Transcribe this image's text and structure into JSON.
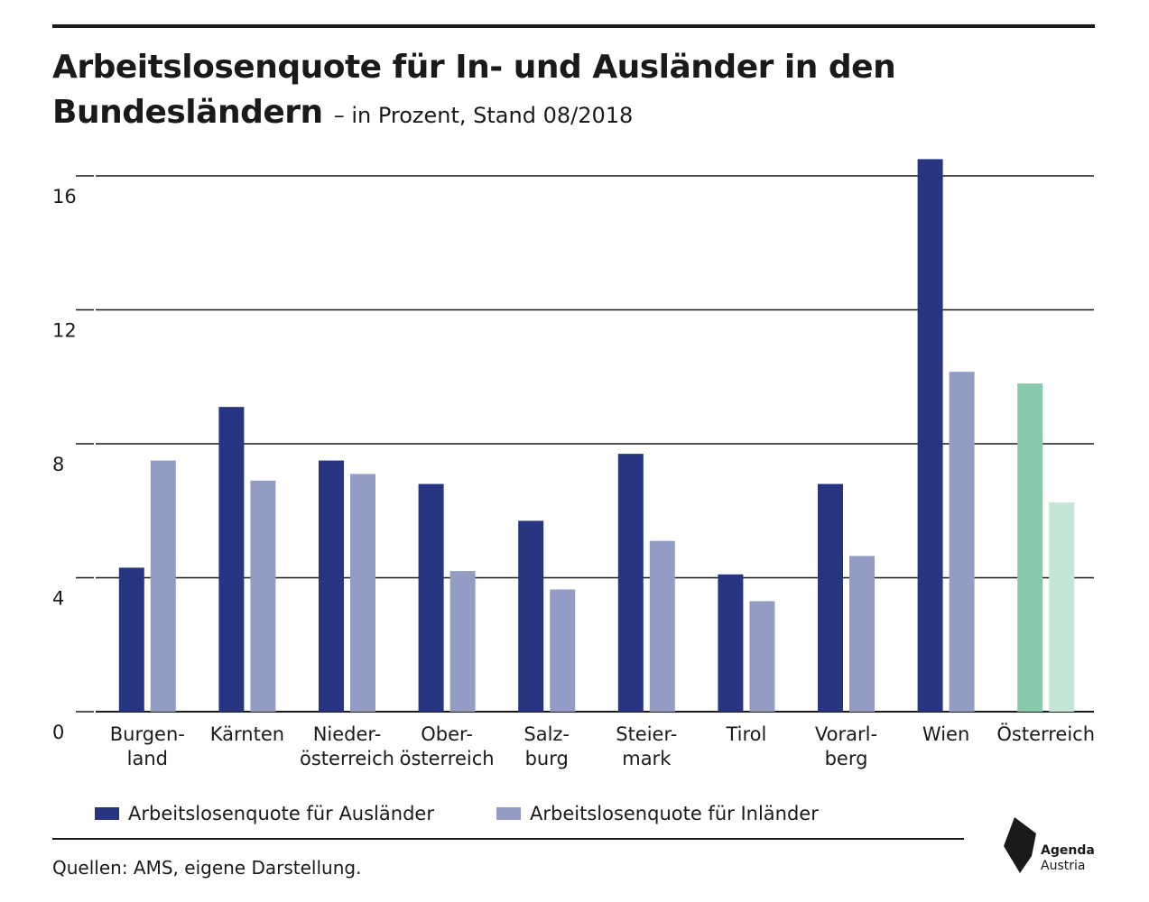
{
  "header": {
    "title_line1": "Arbeitslosenquote für In- und Ausländer in den",
    "title_line2": "Bundesländern",
    "subtitle": "– in Prozent, Stand 08/2018"
  },
  "chart_data": {
    "type": "bar",
    "categories": [
      [
        "Burgen-",
        "land"
      ],
      [
        "Kärnten"
      ],
      [
        "Nieder-",
        "österreich"
      ],
      [
        "Ober-",
        "österreich"
      ],
      [
        "Salz-",
        "burg"
      ],
      [
        "Steier-",
        "mark"
      ],
      [
        "Tirol"
      ],
      [
        "Vorarl-",
        "berg"
      ],
      [
        "Wien"
      ],
      [
        "Österreich"
      ]
    ],
    "series": [
      {
        "name": "Arbeitslosenquote für Ausländer",
        "values": [
          4.3,
          9.1,
          7.5,
          6.8,
          5.7,
          7.7,
          4.1,
          6.8,
          16.5,
          9.8
        ]
      },
      {
        "name": "Arbeitslosenquote für Inländer",
        "values": [
          7.5,
          6.9,
          7.1,
          4.2,
          3.65,
          5.1,
          3.3,
          4.65,
          10.15,
          6.25
        ]
      }
    ],
    "ylim": [
      0,
      16
    ],
    "yticks": [
      0,
      4,
      8,
      12,
      16
    ],
    "grid": true,
    "legend_position": "bottom-left",
    "colors": {
      "auslaender": "#263482",
      "inlaender": "#929cc4",
      "oesterreich_auslaender": "#88c9ab",
      "oesterreich_inlaender": "#c6e5d7"
    },
    "highlight_last_category": true
  },
  "legend": {
    "items": [
      {
        "label": "Arbeitslosenquote für Ausländer",
        "color": "#263482"
      },
      {
        "label": "Arbeitslosenquote für Inländer",
        "color": "#929cc4"
      }
    ]
  },
  "footer": {
    "source": "Quellen: AMS, eigene Darstellung.",
    "logo_line1": "Agenda",
    "logo_line2": "Austria"
  }
}
